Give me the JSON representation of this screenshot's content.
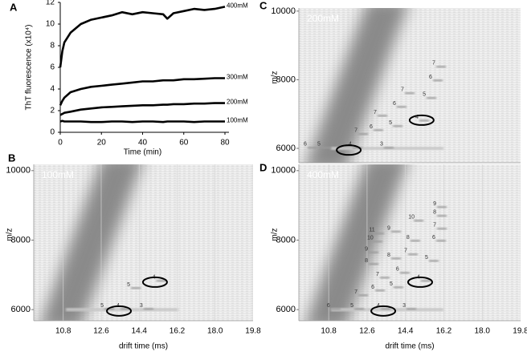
{
  "chart_data": [
    {
      "type": "line",
      "panel": "A",
      "xlabel": "Time (min)",
      "ylabel": "ThT fluorescence (x10⁴)",
      "x": [
        0,
        1,
        2,
        5,
        10,
        15,
        20,
        25,
        30,
        35,
        40,
        45,
        50,
        52,
        55,
        60,
        65,
        70,
        75,
        80
      ],
      "series": [
        {
          "name": "400mM",
          "color": "#000000",
          "values": [
            6.0,
            7.5,
            8.3,
            9.2,
            10.0,
            10.4,
            10.6,
            10.8,
            11.1,
            10.9,
            11.1,
            11.0,
            10.9,
            10.5,
            11.0,
            11.2,
            11.4,
            11.3,
            11.4,
            11.6
          ]
        },
        {
          "name": "300mM",
          "color": "#000000",
          "values": [
            2.5,
            2.9,
            3.2,
            3.7,
            4.0,
            4.2,
            4.3,
            4.4,
            4.5,
            4.6,
            4.7,
            4.7,
            4.8,
            4.8,
            4.8,
            4.9,
            4.9,
            4.95,
            5.0,
            5.0
          ]
        },
        {
          "name": "200mM",
          "color": "#000000",
          "values": [
            1.6,
            1.7,
            1.8,
            1.9,
            2.1,
            2.2,
            2.3,
            2.35,
            2.4,
            2.45,
            2.5,
            2.5,
            2.55,
            2.55,
            2.6,
            2.6,
            2.65,
            2.65,
            2.7,
            2.7
          ]
        },
        {
          "name": "100mM",
          "color": "#000000",
          "values": [
            1.0,
            1.05,
            1.0,
            1.0,
            1.0,
            0.95,
            0.95,
            1.0,
            1.0,
            0.95,
            1.0,
            1.0,
            0.95,
            1.0,
            1.0,
            1.0,
            0.95,
            1.0,
            1.0,
            1.0
          ]
        }
      ],
      "xlim": [
        0,
        80
      ],
      "xticks": [
        0,
        20,
        40,
        60,
        80
      ],
      "ylim": [
        0,
        12
      ],
      "yticks": [
        0,
        2,
        4,
        6,
        8,
        10,
        12
      ]
    },
    {
      "type": "heatmap",
      "panel": "B",
      "label": "100mM",
      "xlabel": "drift time (ms)",
      "ylabel": "m/z",
      "xlim": [
        9.4,
        19.8
      ],
      "xticks": [
        10.8,
        12.6,
        14.4,
        16.2,
        {
          "value": 18,
          "label": "18.0"
        },
        19.8
      ],
      "ylim": [
        5680,
        10180
      ],
      "yticks": [
        6000,
        8000,
        10000
      ],
      "annotations": [
        {
          "text": "5",
          "x": 12.64,
          "y": 6120
        },
        {
          "text": "4",
          "x": 13.4,
          "y": 6120
        },
        {
          "text": "3",
          "x": 14.5,
          "y": 6120
        },
        {
          "text": "5",
          "x": 13.9,
          "y": 6720
        },
        {
          "text": "4",
          "x": 15.1,
          "y": 6930
        }
      ],
      "highlights": [
        {
          "x": 13.44,
          "y": 5960
        },
        {
          "x": 15.15,
          "y": 6790
        }
      ]
    },
    {
      "type": "heatmap",
      "panel": "C",
      "label": "200mM",
      "ylabel": "m/z",
      "xlim": [
        9.4,
        19.8
      ],
      "ylim": [
        5580,
        10090
      ],
      "yticks": [
        6000,
        8000,
        10000
      ],
      "annotations": [
        {
          "text": "6",
          "x": 9.7,
          "y": 6120
        },
        {
          "text": "5",
          "x": 10.34,
          "y": 6120
        },
        {
          "text": "4",
          "x": 11.81,
          "y": 6120
        },
        {
          "text": "3",
          "x": 13.28,
          "y": 6120
        },
        {
          "text": "7",
          "x": 12.08,
          "y": 6520
        },
        {
          "text": "6",
          "x": 12.79,
          "y": 6630
        },
        {
          "text": "5",
          "x": 13.7,
          "y": 6750
        },
        {
          "text": "4",
          "x": 14.94,
          "y": 6910
        },
        {
          "text": "7",
          "x": 12.98,
          "y": 7050
        },
        {
          "text": "6",
          "x": 13.88,
          "y": 7310
        },
        {
          "text": "7",
          "x": 14.26,
          "y": 7710
        },
        {
          "text": "5",
          "x": 15.28,
          "y": 7570
        },
        {
          "text": "6",
          "x": 15.58,
          "y": 8080
        },
        {
          "text": "7",
          "x": 15.73,
          "y": 8480
        }
      ],
      "highlights": [
        {
          "x": 11.74,
          "y": 5950
        },
        {
          "x": 15.16,
          "y": 6820
        }
      ]
    },
    {
      "type": "heatmap",
      "panel": "D",
      "label": "400mM",
      "xlabel": "drift time (ms)",
      "ylabel": "m/z",
      "xlim": [
        9.4,
        19.8
      ],
      "xticks": [
        10.8,
        12.6,
        14.4,
        16.2,
        {
          "value": 18,
          "label": "18.0"
        },
        19.8
      ],
      "ylim": [
        5680,
        10180
      ],
      "yticks": [
        6000,
        8000,
        10000
      ],
      "annotations": [
        {
          "text": "6",
          "x": 10.79,
          "y": 6120
        },
        {
          "text": "5",
          "x": 11.89,
          "y": 6120
        },
        {
          "text": "4",
          "x": 13.13,
          "y": 6120
        },
        {
          "text": "3",
          "x": 14.34,
          "y": 6120
        },
        {
          "text": "7",
          "x": 12.08,
          "y": 6510
        },
        {
          "text": "6",
          "x": 12.87,
          "y": 6650
        },
        {
          "text": "5",
          "x": 13.73,
          "y": 6740
        },
        {
          "text": "4",
          "x": 15.01,
          "y": 6930
        },
        {
          "text": "7",
          "x": 13.09,
          "y": 7020
        },
        {
          "text": "6",
          "x": 14.03,
          "y": 7160
        },
        {
          "text": "5",
          "x": 15.39,
          "y": 7500
        },
        {
          "text": "8",
          "x": 12.57,
          "y": 7410
        },
        {
          "text": "9",
          "x": 12.57,
          "y": 7740
        },
        {
          "text": "8",
          "x": 13.62,
          "y": 7570
        },
        {
          "text": "7",
          "x": 14.41,
          "y": 7690
        },
        {
          "text": "10",
          "x": 12.75,
          "y": 8060
        },
        {
          "text": "8",
          "x": 14.52,
          "y": 8080
        },
        {
          "text": "11",
          "x": 12.83,
          "y": 8290
        },
        {
          "text": "9",
          "x": 13.62,
          "y": 8340
        },
        {
          "text": "10",
          "x": 14.68,
          "y": 8660
        },
        {
          "text": "6",
          "x": 15.73,
          "y": 8080
        },
        {
          "text": "7",
          "x": 15.77,
          "y": 8430
        },
        {
          "text": "8",
          "x": 15.77,
          "y": 8800
        },
        {
          "text": "9",
          "x": 15.77,
          "y": 9050
        }
      ],
      "highlights": [
        {
          "x": 13.36,
          "y": 5960
        },
        {
          "x": 15.09,
          "y": 6790
        }
      ]
    }
  ]
}
